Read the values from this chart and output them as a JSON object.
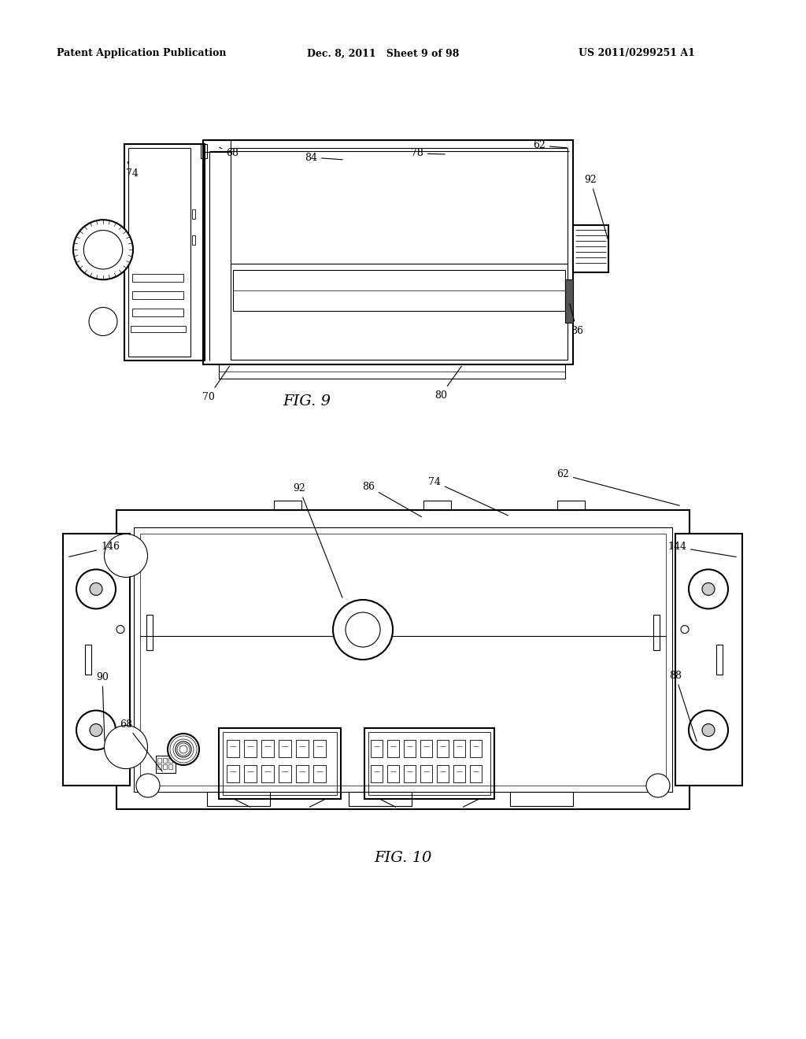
{
  "header_left": "Patent Application Publication",
  "header_mid": "Dec. 8, 2011   Sheet 9 of 98",
  "header_right": "US 2011/0299251 A1",
  "fig9_label": "FIG. 9",
  "fig10_label": "FIG. 10",
  "bg_color": "#ffffff",
  "line_color": "#000000",
  "gray_light": "#d0d0d0",
  "gray_mid": "#a0a0a0",
  "gray_dark": "#606060"
}
